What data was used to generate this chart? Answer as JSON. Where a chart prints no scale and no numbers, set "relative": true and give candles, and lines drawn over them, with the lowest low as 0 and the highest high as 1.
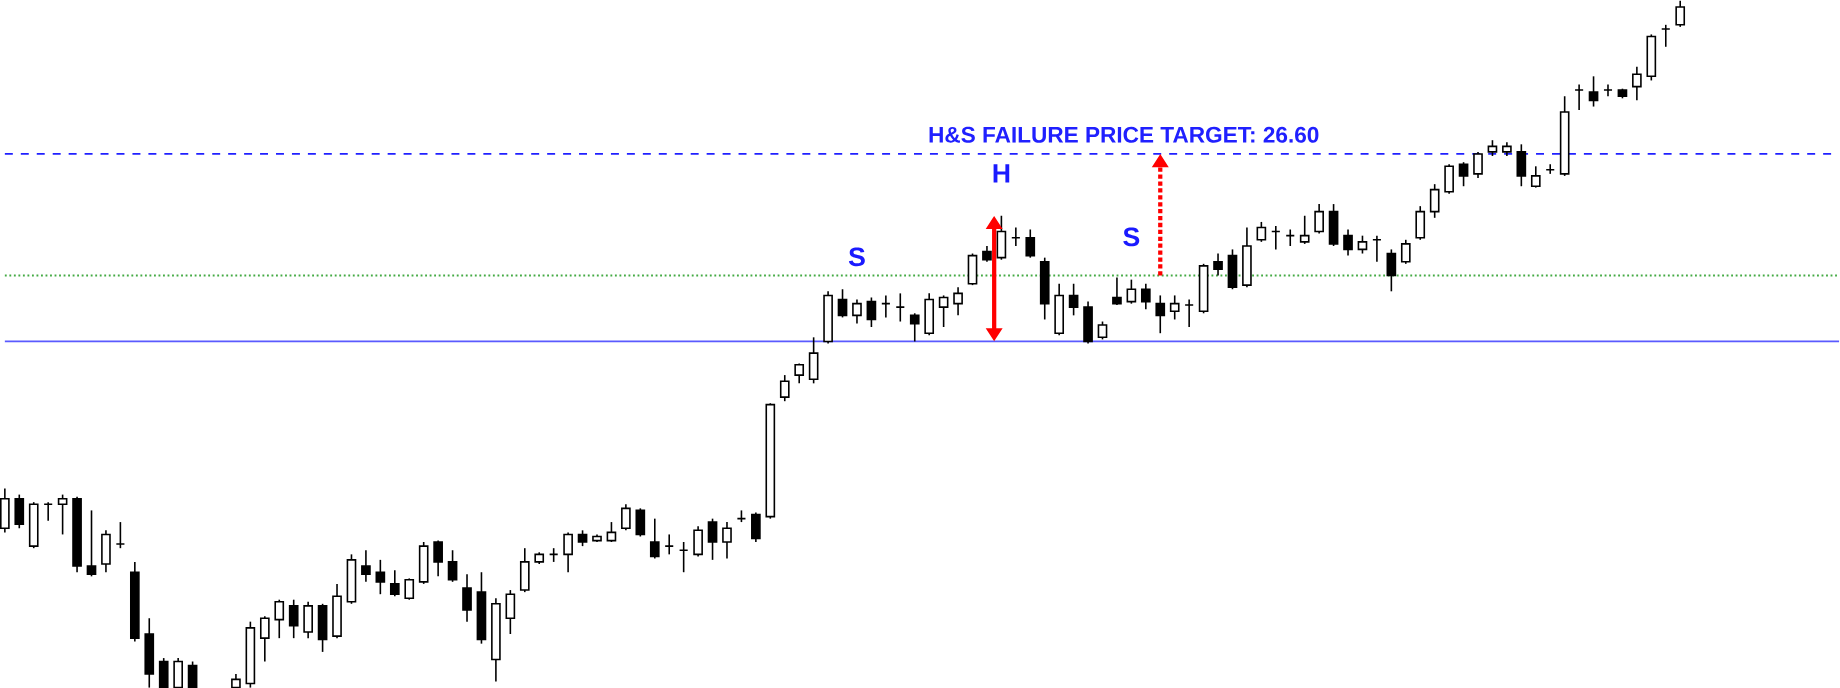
{
  "chart_data": {
    "type": "candlestick",
    "relative": true,
    "categories": [
      null,
      null,
      null,
      null,
      null,
      null,
      null,
      null,
      null,
      null,
      null,
      null,
      null,
      null,
      null,
      null,
      null,
      null,
      null,
      null,
      null,
      null,
      null,
      null,
      null,
      null,
      null,
      null,
      null,
      null,
      null,
      null,
      null,
      null,
      null,
      null,
      null,
      null,
      null,
      null,
      null,
      null,
      null,
      null,
      null,
      null,
      null,
      null,
      null,
      null,
      null,
      null,
      null,
      null,
      null,
      null,
      null,
      null,
      null,
      null,
      null,
      null,
      null,
      null,
      null,
      null,
      null,
      null,
      null,
      null,
      null,
      null,
      null,
      null,
      null,
      null,
      null,
      null,
      null,
      null,
      null,
      null,
      null,
      null,
      null,
      null,
      null,
      null,
      null,
      null,
      null,
      null,
      null,
      null,
      null,
      null,
      null,
      null,
      null,
      null,
      null,
      null,
      null,
      null,
      null,
      null,
      null,
      null,
      null,
      null,
      null,
      null,
      null,
      null,
      null,
      null,
      null
    ],
    "ohlc": [
      [
        0.232,
        0.29,
        0.226,
        0.275
      ],
      [
        0.275,
        0.281,
        0.232,
        0.238
      ],
      [
        0.206,
        0.27,
        0.203,
        0.267
      ],
      [
        0.267,
        0.27,
        0.243,
        0.267
      ],
      [
        0.267,
        0.281,
        0.223,
        0.275
      ],
      [
        0.275,
        0.278,
        0.168,
        0.177
      ],
      [
        0.177,
        0.258,
        0.162,
        0.165
      ],
      [
        0.18,
        0.229,
        0.168,
        0.223
      ],
      [
        0.209,
        0.241,
        0.203,
        0.209
      ],
      [
        0.168,
        0.183,
        0.067,
        0.072
      ],
      [
        0.078,
        0.101,
        0,
        0.02
      ],
      [
        0.038,
        0.043,
        0,
        0
      ],
      [
        0,
        0.043,
        0,
        0.038
      ],
      [
        0.032,
        0.038,
        0,
        0
      ],
      null,
      null,
      [
        0,
        0.02,
        0,
        0.012
      ],
      [
        0.006,
        0.096,
        0,
        0.087
      ],
      [
        0.072,
        0.104,
        0.038,
        0.101
      ],
      [
        0.099,
        0.128,
        0.072,
        0.125
      ],
      [
        0.119,
        0.128,
        0.072,
        0.09
      ],
      [
        0.081,
        0.125,
        0.072,
        0.119
      ],
      [
        0.119,
        0.122,
        0.052,
        0.07
      ],
      [
        0.075,
        0.151,
        0.072,
        0.133
      ],
      [
        0.125,
        0.194,
        0.122,
        0.186
      ],
      [
        0.177,
        0.2,
        0.154,
        0.165
      ],
      [
        0.168,
        0.186,
        0.136,
        0.154
      ],
      [
        0.151,
        0.171,
        0.133,
        0.136
      ],
      [
        0.13,
        0.159,
        0.128,
        0.157
      ],
      [
        0.154,
        0.212,
        0.151,
        0.206
      ],
      [
        0.212,
        0.214,
        0.162,
        0.183
      ],
      [
        0.183,
        0.2,
        0.154,
        0.157
      ],
      [
        0.145,
        0.165,
        0.096,
        0.113
      ],
      [
        0.139,
        0.168,
        0.064,
        0.07
      ],
      [
        0.041,
        0.13,
        0.009,
        0.122
      ],
      [
        0.101,
        0.142,
        0.078,
        0.136
      ],
      [
        0.142,
        0.203,
        0.139,
        0.183
      ],
      [
        0.183,
        0.197,
        0.18,
        0.194
      ],
      [
        0.194,
        0.203,
        0.183,
        0.194
      ],
      [
        0.194,
        0.226,
        0.168,
        0.223
      ],
      [
        0.223,
        0.229,
        0.206,
        0.212
      ],
      [
        0.214,
        0.223,
        0.212,
        0.22
      ],
      [
        0.214,
        0.241,
        0.212,
        0.226
      ],
      [
        0.232,
        0.267,
        0.229,
        0.261
      ],
      [
        0.258,
        0.261,
        0.22,
        0.223
      ],
      [
        0.212,
        0.246,
        0.188,
        0.191
      ],
      [
        0.206,
        0.223,
        0.194,
        0.206
      ],
      [
        0.2,
        0.212,
        0.168,
        0.2
      ],
      [
        0.194,
        0.235,
        0.191,
        0.229
      ],
      [
        0.241,
        0.246,
        0.186,
        0.212
      ],
      [
        0.212,
        0.241,
        0.188,
        0.232
      ],
      [
        0.246,
        0.258,
        0.241,
        0.246
      ],
      [
        0.252,
        0.255,
        0.212,
        0.217
      ],
      [
        0.249,
        0.414,
        0.246,
        0.412
      ],
      [
        0.423,
        0.455,
        0.417,
        0.446
      ],
      [
        0.455,
        0.472,
        0.443,
        0.47
      ],
      [
        0.449,
        0.51,
        0.443,
        0.487
      ],
      [
        0.504,
        0.577,
        0.501,
        0.571
      ],
      [
        0.565,
        0.58,
        0.539,
        0.542
      ],
      [
        0.542,
        0.565,
        0.53,
        0.559
      ],
      [
        0.562,
        0.568,
        0.525,
        0.536
      ],
      [
        0.559,
        0.571,
        0.539,
        0.559
      ],
      [
        0.554,
        0.574,
        0.533,
        0.554
      ],
      [
        0.542,
        0.545,
        0.504,
        0.53
      ],
      [
        0.516,
        0.574,
        0.513,
        0.565
      ],
      [
        0.554,
        0.571,
        0.525,
        0.568
      ],
      [
        0.559,
        0.583,
        0.542,
        0.574
      ],
      [
        0.588,
        0.632,
        0.586,
        0.629
      ],
      [
        0.635,
        0.643,
        0.62,
        0.623
      ],
      [
        0.626,
        0.687,
        0.623,
        0.664
      ],
      [
        0.655,
        0.67,
        0.643,
        0.655
      ],
      [
        0.655,
        0.667,
        0.626,
        0.629
      ],
      [
        0.62,
        0.626,
        0.536,
        0.559
      ],
      [
        0.516,
        0.588,
        0.513,
        0.571
      ],
      [
        0.571,
        0.588,
        0.542,
        0.554
      ],
      [
        0.554,
        0.562,
        0.501,
        0.504
      ],
      [
        0.51,
        0.533,
        0.507,
        0.528
      ],
      [
        0.568,
        0.597,
        0.557,
        0.559
      ],
      [
        0.562,
        0.594,
        0.559,
        0.58
      ],
      [
        0.58,
        0.588,
        0.551,
        0.562
      ],
      [
        0.559,
        0.571,
        0.516,
        0.542
      ],
      [
        0.548,
        0.571,
        0.536,
        0.559
      ],
      [
        0.557,
        0.565,
        0.525,
        0.557
      ],
      [
        0.548,
        0.617,
        0.545,
        0.614
      ],
      [
        0.62,
        0.632,
        0.6,
        0.609
      ],
      [
        0.629,
        0.638,
        0.58,
        0.583
      ],
      [
        0.586,
        0.67,
        0.583,
        0.643
      ],
      [
        0.652,
        0.678,
        0.649,
        0.67
      ],
      [
        0.664,
        0.672,
        0.638,
        0.664
      ],
      [
        0.658,
        0.667,
        0.643,
        0.658
      ],
      [
        0.649,
        0.687,
        0.646,
        0.658
      ],
      [
        0.664,
        0.704,
        0.661,
        0.693
      ],
      [
        0.693,
        0.704,
        0.643,
        0.646
      ],
      [
        0.658,
        0.667,
        0.629,
        0.638
      ],
      [
        0.638,
        0.658,
        0.632,
        0.649
      ],
      [
        0.652,
        0.658,
        0.62,
        0.652
      ],
      [
        0.632,
        0.638,
        0.577,
        0.6
      ],
      [
        0.62,
        0.652,
        0.617,
        0.646
      ],
      [
        0.655,
        0.701,
        0.652,
        0.693
      ],
      [
        0.693,
        0.733,
        0.684,
        0.725
      ],
      [
        0.722,
        0.762,
        0.719,
        0.759
      ],
      [
        0.762,
        0.765,
        0.73,
        0.745
      ],
      [
        0.748,
        0.78,
        0.742,
        0.777
      ],
      [
        0.78,
        0.797,
        0.774,
        0.788
      ],
      [
        0.78,
        0.794,
        0.774,
        0.788
      ],
      [
        0.78,
        0.791,
        0.73,
        0.745
      ],
      [
        0.73,
        0.759,
        0.728,
        0.745
      ],
      [
        0.754,
        0.762,
        0.748,
        0.754
      ],
      [
        0.748,
        0.861,
        0.745,
        0.838
      ],
      [
        0.87,
        0.878,
        0.841,
        0.87
      ],
      [
        0.867,
        0.89,
        0.846,
        0.855
      ],
      [
        0.87,
        0.878,
        0.861,
        0.87
      ],
      [
        0.87,
        0.872,
        0.858,
        0.861
      ],
      [
        0.875,
        0.904,
        0.855,
        0.893
      ],
      [
        0.89,
        0.951,
        0.884,
        0.948
      ],
      [
        0.959,
        0.965,
        0.933,
        0.959
      ],
      [
        0.965,
        1,
        0.962,
        0.991
      ]
    ],
    "ref_lines": [
      {
        "axis": "y",
        "value": 0.504,
        "color": "#5a5aff",
        "line_style": "solid"
      },
      {
        "axis": "y",
        "value": 0.6,
        "color": "#44aa44",
        "line_style": "dotted"
      },
      {
        "axis": "y",
        "value": 0.777,
        "color": "#2020ff",
        "line_style": "dashed"
      }
    ],
    "annotations": [
      {
        "text": "S",
        "y": 0.565
      },
      {
        "text": "H",
        "y": 0.687
      },
      {
        "text": "S",
        "y": 0.594
      },
      "H&S FAILURE PRICE TARGET: 26.60"
    ]
  }
}
